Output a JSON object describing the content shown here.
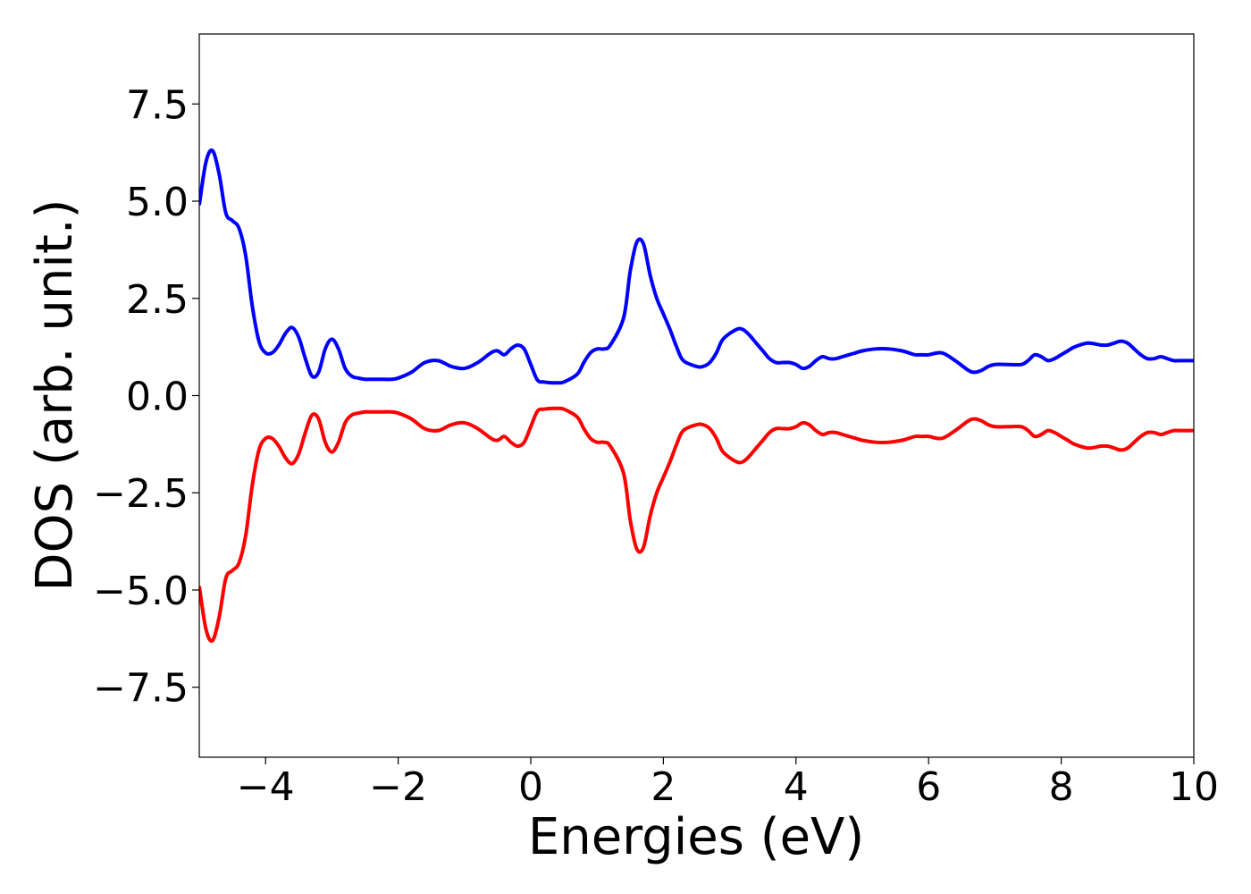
{
  "chart_data": {
    "type": "line",
    "xlabel": "Energies (eV)",
    "ylabel": "DOS (arb. unit.)",
    "xlim": [
      -5,
      10
    ],
    "ylim": [
      -9.3,
      9.3
    ],
    "grid": false,
    "xticks": [
      -4,
      -2,
      0,
      2,
      4,
      6,
      8,
      10
    ],
    "xtick_labels": [
      "−4",
      "−2",
      "0",
      "2",
      "4",
      "6",
      "8",
      "10"
    ],
    "yticks": [
      -7.5,
      -5.0,
      -2.5,
      0.0,
      2.5,
      5.0,
      7.5
    ],
    "ytick_labels": [
      "−7.5",
      "−5.0",
      "−2.5",
      "0.0",
      "2.5",
      "5.0",
      "7.5"
    ],
    "series": [
      {
        "color": "#0000ff",
        "x": [
          -5.0,
          -4.9,
          -4.8,
          -4.7,
          -4.6,
          -4.5,
          -4.4,
          -4.3,
          -4.2,
          -4.1,
          -4.0,
          -3.9,
          -3.8,
          -3.7,
          -3.6,
          -3.5,
          -3.4,
          -3.3,
          -3.2,
          -3.1,
          -3.0,
          -2.9,
          -2.8,
          -2.7,
          -2.6,
          -2.5,
          -2.4,
          -2.3,
          -2.1,
          -2.0,
          -1.8,
          -1.6,
          -1.4,
          -1.2,
          -1.0,
          -0.8,
          -0.6,
          -0.5,
          -0.4,
          -0.3,
          -0.2,
          -0.1,
          0.0,
          0.1,
          0.2,
          0.3,
          0.4,
          0.5,
          0.7,
          0.8,
          0.9,
          1.0,
          1.1,
          1.2,
          1.4,
          1.5,
          1.6,
          1.7,
          1.8,
          1.9,
          2.0,
          2.1,
          2.2,
          2.3,
          2.5,
          2.6,
          2.7,
          2.8,
          2.9,
          3.1,
          3.2,
          3.3,
          3.4,
          3.5,
          3.6,
          3.7,
          3.8,
          3.9,
          4.0,
          4.1,
          4.2,
          4.3,
          4.4,
          4.5,
          4.6,
          4.7,
          4.8,
          4.9,
          5.0,
          5.2,
          5.4,
          5.6,
          5.7,
          5.8,
          5.9,
          6.0,
          6.2,
          6.4,
          6.6,
          6.7,
          6.8,
          6.9,
          7.0,
          7.2,
          7.4,
          7.5,
          7.6,
          7.7,
          7.8,
          7.9,
          8.0,
          8.1,
          8.2,
          8.4,
          8.6,
          8.7,
          8.8,
          8.9,
          9.0,
          9.1,
          9.2,
          9.3,
          9.4,
          9.5,
          9.6,
          9.7,
          9.8,
          9.9,
          10.0
        ],
        "y": [
          4.9,
          6.0,
          6.3,
          5.7,
          4.7,
          4.5,
          4.3,
          3.6,
          2.3,
          1.4,
          1.1,
          1.1,
          1.3,
          1.6,
          1.75,
          1.5,
          0.95,
          0.5,
          0.6,
          1.2,
          1.45,
          1.2,
          0.7,
          0.5,
          0.45,
          0.42,
          0.42,
          0.42,
          0.42,
          0.45,
          0.6,
          0.85,
          0.9,
          0.75,
          0.7,
          0.85,
          1.1,
          1.15,
          1.05,
          1.2,
          1.3,
          1.2,
          0.8,
          0.4,
          0.35,
          0.33,
          0.33,
          0.35,
          0.55,
          0.85,
          1.1,
          1.2,
          1.2,
          1.3,
          2.0,
          3.2,
          3.95,
          3.9,
          3.1,
          2.5,
          2.1,
          1.7,
          1.25,
          0.9,
          0.75,
          0.75,
          0.85,
          1.1,
          1.45,
          1.7,
          1.7,
          1.55,
          1.35,
          1.15,
          0.95,
          0.85,
          0.85,
          0.85,
          0.8,
          0.7,
          0.75,
          0.9,
          1.0,
          0.95,
          0.95,
          1.0,
          1.05,
          1.1,
          1.15,
          1.2,
          1.2,
          1.15,
          1.1,
          1.05,
          1.05,
          1.05,
          1.1,
          0.9,
          0.65,
          0.6,
          0.65,
          0.75,
          0.8,
          0.8,
          0.8,
          0.9,
          1.05,
          1.0,
          0.9,
          0.95,
          1.05,
          1.15,
          1.25,
          1.35,
          1.3,
          1.3,
          1.35,
          1.4,
          1.35,
          1.2,
          1.05,
          0.95,
          0.95,
          1.0,
          0.95,
          0.9,
          0.9,
          0.9,
          0.9
        ]
      },
      {
        "color": "#ff0000",
        "x": [
          -5.0,
          -4.9,
          -4.8,
          -4.7,
          -4.6,
          -4.5,
          -4.4,
          -4.3,
          -4.2,
          -4.1,
          -4.0,
          -3.9,
          -3.8,
          -3.7,
          -3.6,
          -3.5,
          -3.4,
          -3.3,
          -3.2,
          -3.1,
          -3.0,
          -2.9,
          -2.8,
          -2.7,
          -2.6,
          -2.5,
          -2.4,
          -2.3,
          -2.1,
          -2.0,
          -1.8,
          -1.6,
          -1.4,
          -1.2,
          -1.0,
          -0.8,
          -0.6,
          -0.5,
          -0.4,
          -0.3,
          -0.2,
          -0.1,
          0.0,
          0.1,
          0.2,
          0.3,
          0.4,
          0.5,
          0.7,
          0.8,
          0.9,
          1.0,
          1.1,
          1.2,
          1.4,
          1.5,
          1.6,
          1.7,
          1.8,
          1.9,
          2.0,
          2.1,
          2.2,
          2.3,
          2.5,
          2.6,
          2.7,
          2.8,
          2.9,
          3.1,
          3.2,
          3.3,
          3.4,
          3.5,
          3.6,
          3.7,
          3.8,
          3.9,
          4.0,
          4.1,
          4.2,
          4.3,
          4.4,
          4.5,
          4.6,
          4.7,
          4.8,
          4.9,
          5.0,
          5.2,
          5.4,
          5.6,
          5.7,
          5.8,
          5.9,
          6.0,
          6.2,
          6.4,
          6.6,
          6.7,
          6.8,
          6.9,
          7.0,
          7.2,
          7.4,
          7.5,
          7.6,
          7.7,
          7.8,
          7.9,
          8.0,
          8.1,
          8.2,
          8.4,
          8.6,
          8.7,
          8.8,
          8.9,
          9.0,
          9.1,
          9.2,
          9.3,
          9.4,
          9.5,
          9.6,
          9.7,
          9.8,
          9.9,
          10.0
        ],
        "y": [
          -4.9,
          -6.0,
          -6.3,
          -5.7,
          -4.7,
          -4.5,
          -4.3,
          -3.6,
          -2.3,
          -1.4,
          -1.1,
          -1.1,
          -1.3,
          -1.6,
          -1.75,
          -1.5,
          -0.95,
          -0.5,
          -0.6,
          -1.2,
          -1.45,
          -1.2,
          -0.7,
          -0.5,
          -0.45,
          -0.42,
          -0.42,
          -0.42,
          -0.42,
          -0.45,
          -0.6,
          -0.85,
          -0.9,
          -0.75,
          -0.7,
          -0.85,
          -1.1,
          -1.15,
          -1.05,
          -1.2,
          -1.3,
          -1.2,
          -0.8,
          -0.4,
          -0.35,
          -0.33,
          -0.33,
          -0.35,
          -0.55,
          -0.85,
          -1.1,
          -1.2,
          -1.2,
          -1.3,
          -2.0,
          -3.2,
          -3.95,
          -3.9,
          -3.1,
          -2.5,
          -2.1,
          -1.7,
          -1.25,
          -0.9,
          -0.75,
          -0.75,
          -0.85,
          -1.1,
          -1.45,
          -1.7,
          -1.7,
          -1.55,
          -1.35,
          -1.15,
          -0.95,
          -0.85,
          -0.85,
          -0.85,
          -0.8,
          -0.7,
          -0.75,
          -0.9,
          -1.0,
          -0.95,
          -0.95,
          -1.0,
          -1.05,
          -1.1,
          -1.15,
          -1.2,
          -1.2,
          -1.15,
          -1.1,
          -1.05,
          -1.05,
          -1.05,
          -1.1,
          -0.9,
          -0.65,
          -0.6,
          -0.65,
          -0.75,
          -0.8,
          -0.8,
          -0.8,
          -0.9,
          -1.05,
          -1.0,
          -0.9,
          -0.95,
          -1.05,
          -1.15,
          -1.25,
          -1.35,
          -1.3,
          -1.3,
          -1.35,
          -1.4,
          -1.35,
          -1.2,
          -1.05,
          -0.95,
          -0.95,
          -1.0,
          -0.95,
          -0.9,
          -0.9,
          -0.9,
          -0.9
        ]
      }
    ]
  }
}
